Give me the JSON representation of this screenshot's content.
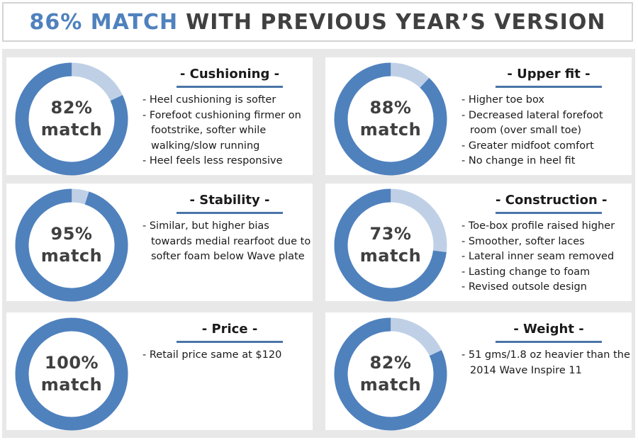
{
  "title": {
    "accent": "86% MATCH",
    "rest": "WITH PREVIOUS YEAR’S VERSION"
  },
  "colors": {
    "ring_match": "#4f81bd",
    "ring_remainder": "#bfd0e6",
    "title_accent": "#4f81bd",
    "title_underline": "#4a74a8",
    "grid_background": "#e8e8e8"
  },
  "chart_data": [
    {
      "type": "pie",
      "title": "- Cushioning -",
      "values": [
        82,
        18
      ],
      "value_label": "82%",
      "value_suffix": "match",
      "notes": [
        "Heel cushioning is softer",
        "Forefoot cushioning firmer on footstrike, softer while walking/slow running",
        "Heel feels less responsive"
      ]
    },
    {
      "type": "pie",
      "title": "- Upper fit -",
      "values": [
        88,
        12
      ],
      "value_label": "88%",
      "value_suffix": "match",
      "notes": [
        "Higher toe box",
        "Decreased lateral forefoot room (over small toe)",
        "Greater midfoot comfort",
        "No change in heel fit"
      ]
    },
    {
      "type": "pie",
      "title": "- Stability -",
      "values": [
        95,
        5
      ],
      "value_label": "95%",
      "value_suffix": "match",
      "notes": [
        "Similar, but higher bias towards medial rearfoot due to softer foam below Wave plate"
      ]
    },
    {
      "type": "pie",
      "title": "- Construction -",
      "values": [
        73,
        27
      ],
      "value_label": "73%",
      "value_suffix": "match",
      "notes": [
        "Toe-box profile raised higher",
        "Smoother, softer laces",
        "Lateral inner seam removed",
        "Lasting change to foam",
        "Revised outsole design"
      ]
    },
    {
      "type": "pie",
      "title": "- Price -",
      "values": [
        100,
        0
      ],
      "value_label": "100%",
      "value_suffix": "match",
      "notes": [
        " Retail price same at $120"
      ]
    },
    {
      "type": "pie",
      "title": "- Weight -",
      "values": [
        82,
        18
      ],
      "value_label": "82%",
      "value_suffix": "match",
      "notes": [
        "51 gms/1.8 oz heavier than the 2014 Wave Inspire 11"
      ]
    }
  ]
}
